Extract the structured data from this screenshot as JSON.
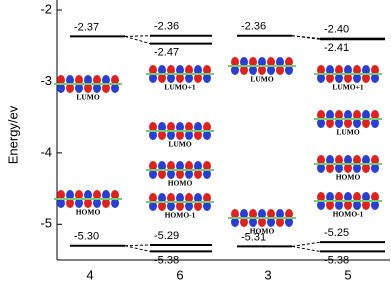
{
  "chart_data": {
    "type": "energy-level",
    "y_label": "Energy/ev",
    "categories": [
      "4",
      "6",
      "3",
      "5"
    ],
    "groups": [
      {
        "values": [
          -2.37,
          -5.3
        ],
        "value_labels": [
          "-2.37",
          "-5.30"
        ],
        "orbitals": [
          "LUMO",
          "HOMO"
        ]
      },
      {
        "values": [
          -2.36,
          -2.47,
          -5.29,
          -5.38
        ],
        "value_labels": [
          "-2.36",
          "-2.47",
          "-5.29",
          "-5.38"
        ],
        "orbitals": [
          "LUMO+1",
          "LUMO",
          "HOMO",
          "HOMO-1"
        ]
      },
      {
        "values": [
          -2.36,
          -5.31
        ],
        "value_labels": [
          "-2.36",
          "-5.31"
        ],
        "orbitals": [
          "LUMO",
          "HOMO"
        ]
      },
      {
        "values": [
          -2.4,
          -2.41,
          -5.25,
          -5.38
        ],
        "value_labels": [
          "-2.40",
          "-2.41",
          "-5.25",
          "-5.38"
        ],
        "orbitals": [
          "LUMO+1",
          "LUMO",
          "HOMO",
          "HOMO-1"
        ]
      }
    ],
    "ylim": [
      -5.5,
      -2
    ],
    "yticks": [
      -2,
      -3,
      -4,
      -5
    ]
  }
}
